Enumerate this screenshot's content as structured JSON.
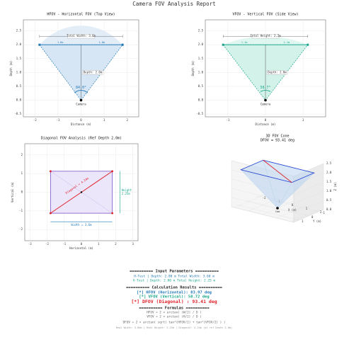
{
  "page_title": "Camera FOV Analysis Report",
  "chart_data": [
    {
      "type": "fov",
      "title": "HFOV - Horizontal FOV (Top View)",
      "xlabel": "Distance (m)",
      "ylabel": "Depth (m)",
      "x": [
        -1.8,
        0,
        1.8
      ],
      "y": [
        2,
        0,
        2
      ],
      "color": "#1f77b4",
      "fill": "#d6e6f5",
      "xlim": [
        -2.5,
        2.5
      ],
      "ylim": [
        -0.6,
        2.9
      ],
      "xticks": [
        -2,
        -1,
        0,
        1,
        2
      ],
      "yticks": [
        -0.5,
        {
          "value": 0,
          "label": "0.0"
        },
        0.5,
        {
          "value": 1,
          "label": "1.0"
        },
        1.5,
        {
          "value": 2,
          "label": "2.0"
        },
        2.5
      ],
      "grid": true,
      "angle": 83.97,
      "angle_label": "84.0°",
      "width_label": "Total Width: 3.6m",
      "depth_label": "Depth: 2.0m",
      "camera_label": "Camera",
      "half_labels": [
        "1.8m",
        "1.8m"
      ]
    },
    {
      "type": "fov",
      "title": "VFOV - Vertical FOV (Side View)",
      "xlabel": "Distance (m)",
      "ylabel": "Depth (m)",
      "x": [
        -1.125,
        0,
        1.125
      ],
      "y": [
        2,
        0,
        2
      ],
      "color": "#17a589",
      "fill": "#d3f2ea",
      "xlim": [
        -1.6,
        1.6
      ],
      "ylim": [
        -0.6,
        2.9
      ],
      "xticks": [
        -1,
        0,
        1
      ],
      "yticks": [
        -0.5,
        {
          "value": 0,
          "label": "0.0"
        },
        0.5,
        {
          "value": 1,
          "label": "1.0"
        },
        1.5,
        {
          "value": 2,
          "label": "2.0"
        },
        2.5
      ],
      "grid": true,
      "angle": 58.72,
      "angle_label": "58.7°",
      "width_label": "Total Height: 2.2m",
      "depth_label": "Depth: 2.0m",
      "camera_label": "Camera",
      "half_labels": [
        "1.1m",
        "1.1m"
      ]
    },
    {
      "type": "rect",
      "title": "Diagonal FOV Analysis (Ref Depth 2.0m)",
      "xlabel": "Horizontal (m)",
      "ylabel": "Vertical (m)",
      "x": [
        -1.8,
        1.8
      ],
      "y": [
        -1.125,
        1.125
      ],
      "color": "#7b52c8",
      "fill": "#ece6fa",
      "diagonal_color": "#e0202a",
      "xlim": [
        -3.3,
        3.3
      ],
      "ylim": [
        -2.6,
        2.6
      ],
      "xticks": [
        -3,
        -2,
        -1,
        0,
        1,
        2,
        3
      ],
      "yticks": [
        -2,
        -1,
        0,
        1,
        2
      ],
      "grid": true,
      "diagonal_label": "Diagonal = 4.24m",
      "width_label": "Width = 3.6m",
      "height_label": [
        "Height",
        "2.25m"
      ]
    },
    {
      "type": "cone3d",
      "title": "3D FOV Cone",
      "subtitle": "DFOV = 93.41 deg",
      "xlabel": "X (m)",
      "ylabel": "Y (m)",
      "zlabel": "Z (m)",
      "x": [
        -1.8,
        1.8
      ],
      "y": [
        -1.125,
        1.125
      ],
      "z": 2,
      "color": "#1f3fd0",
      "fill": "#b9d4f0",
      "diagonal_color": "#e0202a",
      "xlim": [
        -2.2,
        2.2
      ],
      "ylim": [
        -1.5,
        1.5
      ],
      "zlim": [
        0,
        2.5
      ],
      "xticks": [
        -2,
        -1,
        0,
        1,
        2
      ],
      "yticks": [
        -1,
        0,
        1
      ],
      "zticks": [
        {
          "value": 0,
          "label": "0.0"
        },
        0.5,
        {
          "value": 1,
          "label": "1.0"
        },
        1.5,
        {
          "value": 2,
          "label": "2.0"
        },
        2.5
      ],
      "camera_label": "Cam"
    }
  ],
  "report": {
    "lines": [
      {
        "text": "========== Input Parameters ==========",
        "color": "#222222"
      },
      {
        "text": "H-Test | Depth: 2.00 m    Total Width: 3.60 m",
        "color": "#1f77b4"
      },
      {
        "text": "V-Test | Depth: 2.00 m    Total Height: 2.25 m",
        "color": "#17a589"
      },
      {
        "text": "========== Calculation Results ==========",
        "color": "#222222"
      },
      {
        "text": "[*] HFOV (Horizontal):  83.97 deg",
        "color": "#1f77b4"
      },
      {
        "text": "[*] VFOV (Vertical):  58.72 deg",
        "color": "#17a589"
      },
      {
        "text": "[*] DFOV (Diagonal) :  93.41 deg",
        "color": "#e0202a"
      },
      {
        "text": "========== Formulas ==========",
        "color": "#222222"
      },
      {
        "text": "HFOV = 2 × arctan( (W/2) / D )",
        "color": "#666666"
      },
      {
        "text": "VFOV = 2 × arctan( (H/2) / D )",
        "color": "#666666"
      },
      {
        "text": "DFOV = 2 × arctan( sqrt( tan²(HFOV/2) + tan²(VFOV/2) ) )",
        "color": "#666666"
      },
      {
        "text": "Real Width: 3.60m | Real Height: 2.25m | Diagonal: 4.24m  (at ref Depth 2.0m)",
        "color": "#999999"
      }
    ]
  }
}
